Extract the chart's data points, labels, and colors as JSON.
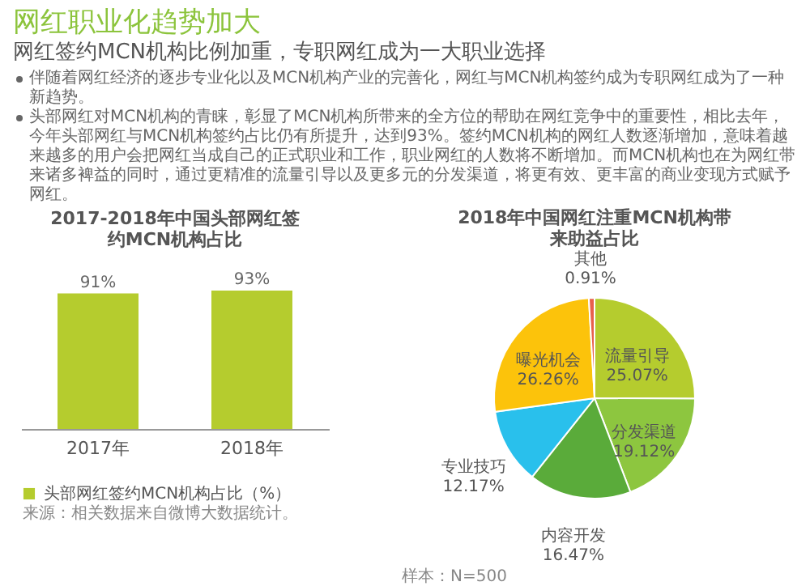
{
  "chart_data": [
    {
      "type": "other",
      "title": "网红职业化趋势加大",
      "subtitle": "网红签约MCN机构比例加重，专职网红成为一大职业选择",
      "annotations": [
        "伴随着网红经济的逐步专业化以及MCN机构产业的完善化，网红与MCN机构签约成为专职网红成为了一种新趋势。",
        "头部网红对MCN机构的青睐，彰显了MCN机构所带来的全方位的帮助在网红竞争中的重要性，相比去年，今年头部网红与MCN机构签约占比仍有所提升，达到93%。签约MCN机构的网红人数逐渐增加，意味着越来越多的用户会把网红当成自己的正式职业和工作，职业网红的人数将不断增加。而MCN机构也在为网红带来诸多裨益的同时，通过更精准的流量引导以及更多元的分发渠道，将更有效、更丰富的商业变现方式赋予网红。"
      ]
    },
    {
      "type": "bar",
      "title": "2017-2018年中国头部网红签约MCN机构占比",
      "categories": [
        "2017年",
        "2018年"
      ],
      "series": [
        {
          "name": "头部网红签约MCN机构占比（%）",
          "color": "#b5cc2e",
          "values": [
            91,
            93
          ],
          "value_labels": [
            "91%",
            "93%"
          ]
        }
      ],
      "tick_labels": "x",
      "legend": "bottom",
      "annotations": [
        "来源：相关数据来自微博大数据统计。"
      ]
    },
    {
      "type": "pie",
      "title": "2018年中国网红注重MCN机构带来助益占比",
      "categories": [
        "流量引导",
        "分发渠道",
        "内容开发",
        "专业技巧",
        "曝光机会",
        "其他"
      ],
      "values": [
        25.07,
        19.12,
        16.47,
        12.17,
        26.26,
        0.91
      ],
      "colors": [
        "#b5cc2e",
        "#8dc63f",
        "#5aab3a",
        "#29c0ec",
        "#fcc30b",
        "#e8604c"
      ],
      "value_labels": [
        "25.07%",
        "19.12%",
        "16.47%",
        "12.17%",
        "26.26%",
        "0.91%"
      ],
      "annotations": [
        "样本：N=500"
      ]
    }
  ]
}
